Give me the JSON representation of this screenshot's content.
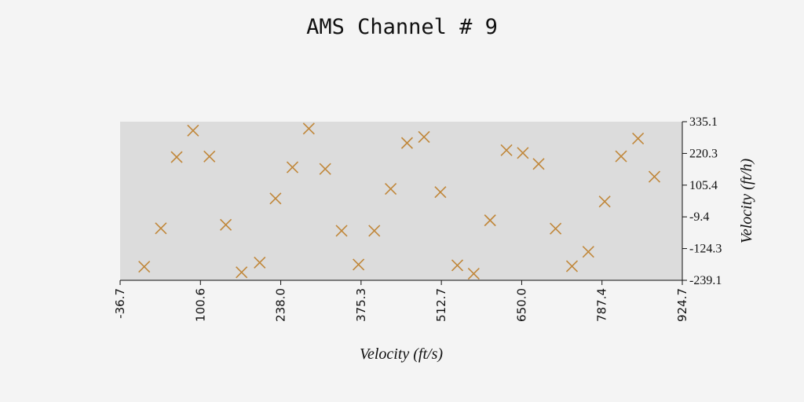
{
  "chart_data": {
    "type": "scatter",
    "title": "AMS Channel # 9",
    "xlabel": "Velocity (ft/s)",
    "ylabel": "Velocity (ft/h)",
    "xlim": [
      -36.7,
      924.7
    ],
    "ylim": [
      -239.1,
      335.1
    ],
    "xticks": [
      "-36.7",
      "100.6",
      "238.0",
      "375.3",
      "512.7",
      "650.0",
      "787.4",
      "924.7"
    ],
    "yticks": [
      "335.1",
      "220.3",
      "105.4",
      "-9.4",
      "-124.3",
      "-239.1"
    ],
    "y_axis_side": "right",
    "grid": false,
    "marker": "x",
    "colors": {
      "marker": "#c0873a",
      "plot_bg": "#dcdcdc",
      "page_bg": "#f4f4f4"
    },
    "points": [
      {
        "x": 4.5,
        "y": -190
      },
      {
        "x": 33,
        "y": -51
      },
      {
        "x": 60,
        "y": 207
      },
      {
        "x": 88,
        "y": 303
      },
      {
        "x": 116,
        "y": 209
      },
      {
        "x": 144,
        "y": -38
      },
      {
        "x": 171,
        "y": -210
      },
      {
        "x": 202,
        "y": -175
      },
      {
        "x": 229,
        "y": 57
      },
      {
        "x": 258,
        "y": 170
      },
      {
        "x": 286,
        "y": 310
      },
      {
        "x": 314,
        "y": 164
      },
      {
        "x": 342,
        "y": -60
      },
      {
        "x": 371,
        "y": -182
      },
      {
        "x": 398,
        "y": -60
      },
      {
        "x": 426,
        "y": 92
      },
      {
        "x": 454,
        "y": 258
      },
      {
        "x": 483,
        "y": 280
      },
      {
        "x": 511,
        "y": 80
      },
      {
        "x": 540,
        "y": -185
      },
      {
        "x": 568,
        "y": -215
      },
      {
        "x": 596,
        "y": -22
      },
      {
        "x": 624,
        "y": 232
      },
      {
        "x": 652,
        "y": 222
      },
      {
        "x": 679,
        "y": 182
      },
      {
        "x": 708,
        "y": -52
      },
      {
        "x": 736,
        "y": -188
      },
      {
        "x": 764,
        "y": -136
      },
      {
        "x": 792,
        "y": 46
      },
      {
        "x": 820,
        "y": 210
      },
      {
        "x": 849,
        "y": 274
      },
      {
        "x": 877,
        "y": 136
      }
    ]
  }
}
